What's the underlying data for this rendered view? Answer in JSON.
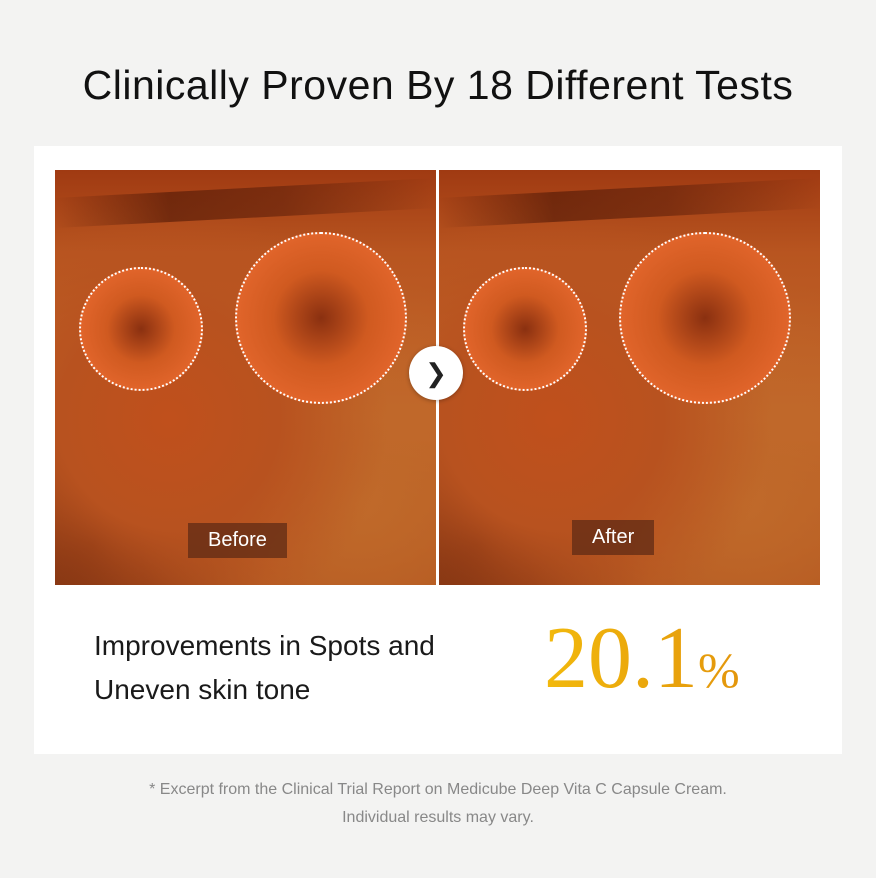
{
  "title": "Clinically Proven By 18 Different Tests",
  "images": {
    "before_label": "Before",
    "after_label": "After",
    "arrow_icon": "chevron-right-icon"
  },
  "result": {
    "description_line1": "Improvements in Spots and",
    "description_line2": "Uneven skin tone",
    "value": "20.1",
    "unit": "%",
    "accent_color": "#eba80c"
  },
  "footnote": {
    "line1": "* Excerpt from the Clinical Trial Report on Medicube Deep Vita C Capsule Cream.",
    "line2": "Individual results may vary."
  }
}
